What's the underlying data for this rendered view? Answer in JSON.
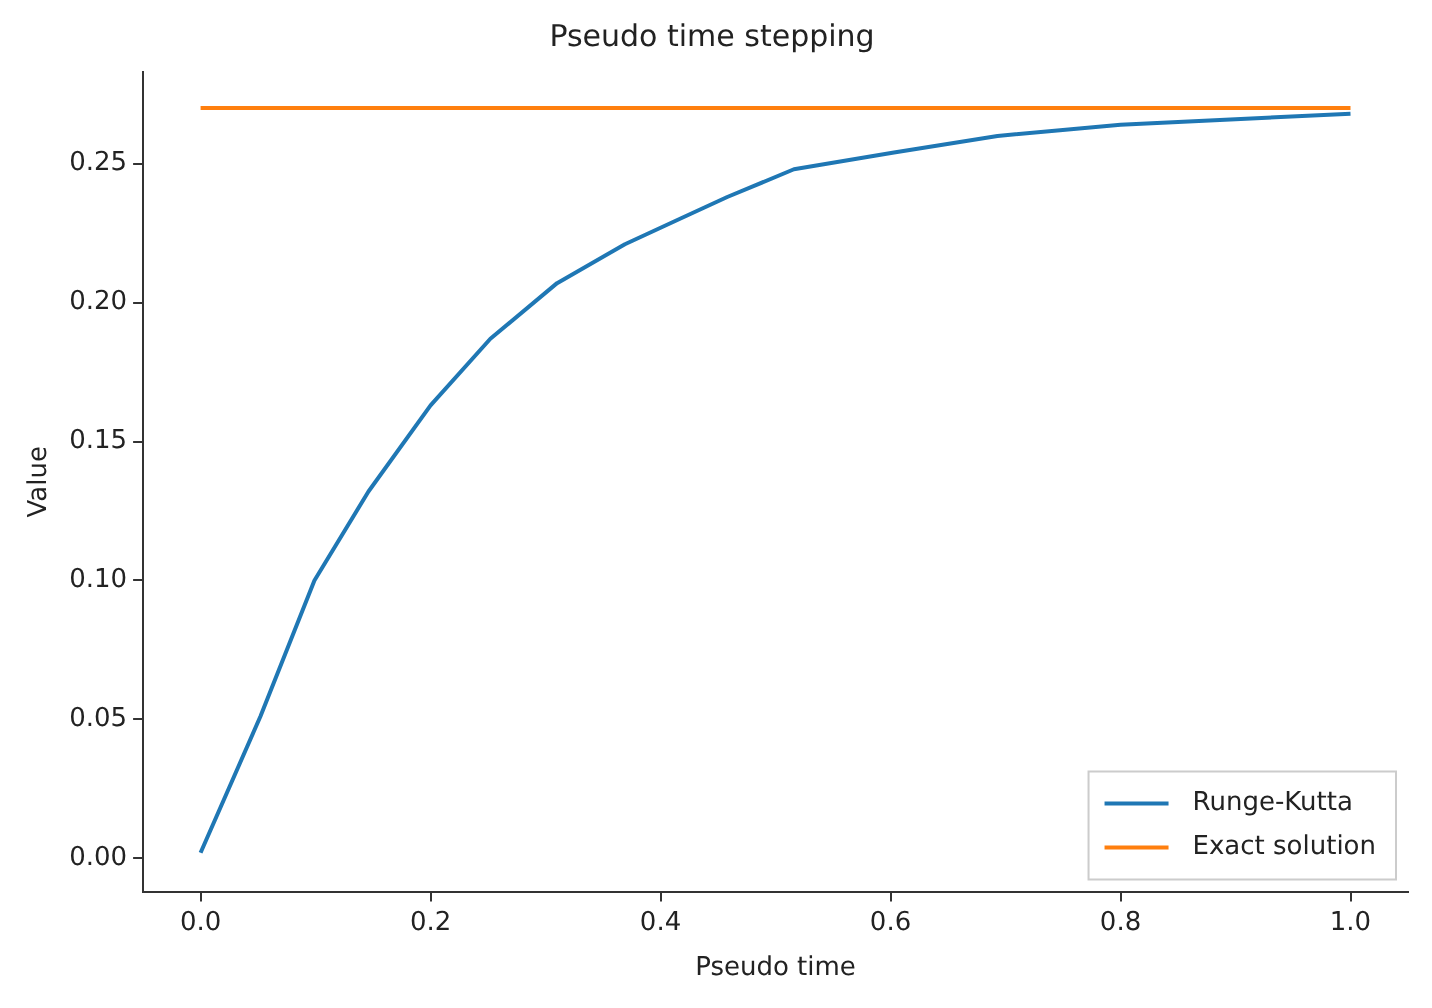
{
  "chart_data": {
    "type": "line",
    "title": "Pseudo time stepping",
    "xlabel": "Pseudo time",
    "ylabel": "Value",
    "xlim": [
      -0.05,
      1.05
    ],
    "ylim": [
      -0.012,
      0.283
    ],
    "xticks": [
      {
        "value": 0,
        "label": "0.0"
      },
      0.2,
      0.4,
      0.6,
      0.8,
      {
        "value": 1,
        "label": "1.0"
      }
    ],
    "yticks": [
      {
        "value": 0,
        "label": "0.00"
      },
      0.05,
      {
        "value": 0.1,
        "label": "0.10"
      },
      0.15,
      {
        "value": 0.2,
        "label": "0.20"
      },
      0.25
    ],
    "series": [
      {
        "name": "Runge-Kutta",
        "color": "#1f77b4",
        "x": [
          0,
          0.052,
          0.099,
          0.146,
          0.2,
          0.252,
          0.31,
          0.369,
          0.416,
          0.458,
          0.516,
          0.603,
          0.693,
          0.8,
          0.9,
          1
        ],
        "values": [
          0.002,
          0.051,
          0.1,
          0.132,
          0.163,
          0.187,
          0.207,
          0.221,
          0.23,
          0.238,
          0.248,
          0.254,
          0.26,
          0.264,
          0.266,
          0.268
        ]
      },
      {
        "name": "Exact solution",
        "color": "#ff7f0e",
        "x": [
          0,
          1
        ],
        "values": [
          0.27,
          0.27
        ]
      }
    ],
    "grid": false,
    "legend": "bottom right",
    "marker": "none",
    "line_style": "solid"
  }
}
